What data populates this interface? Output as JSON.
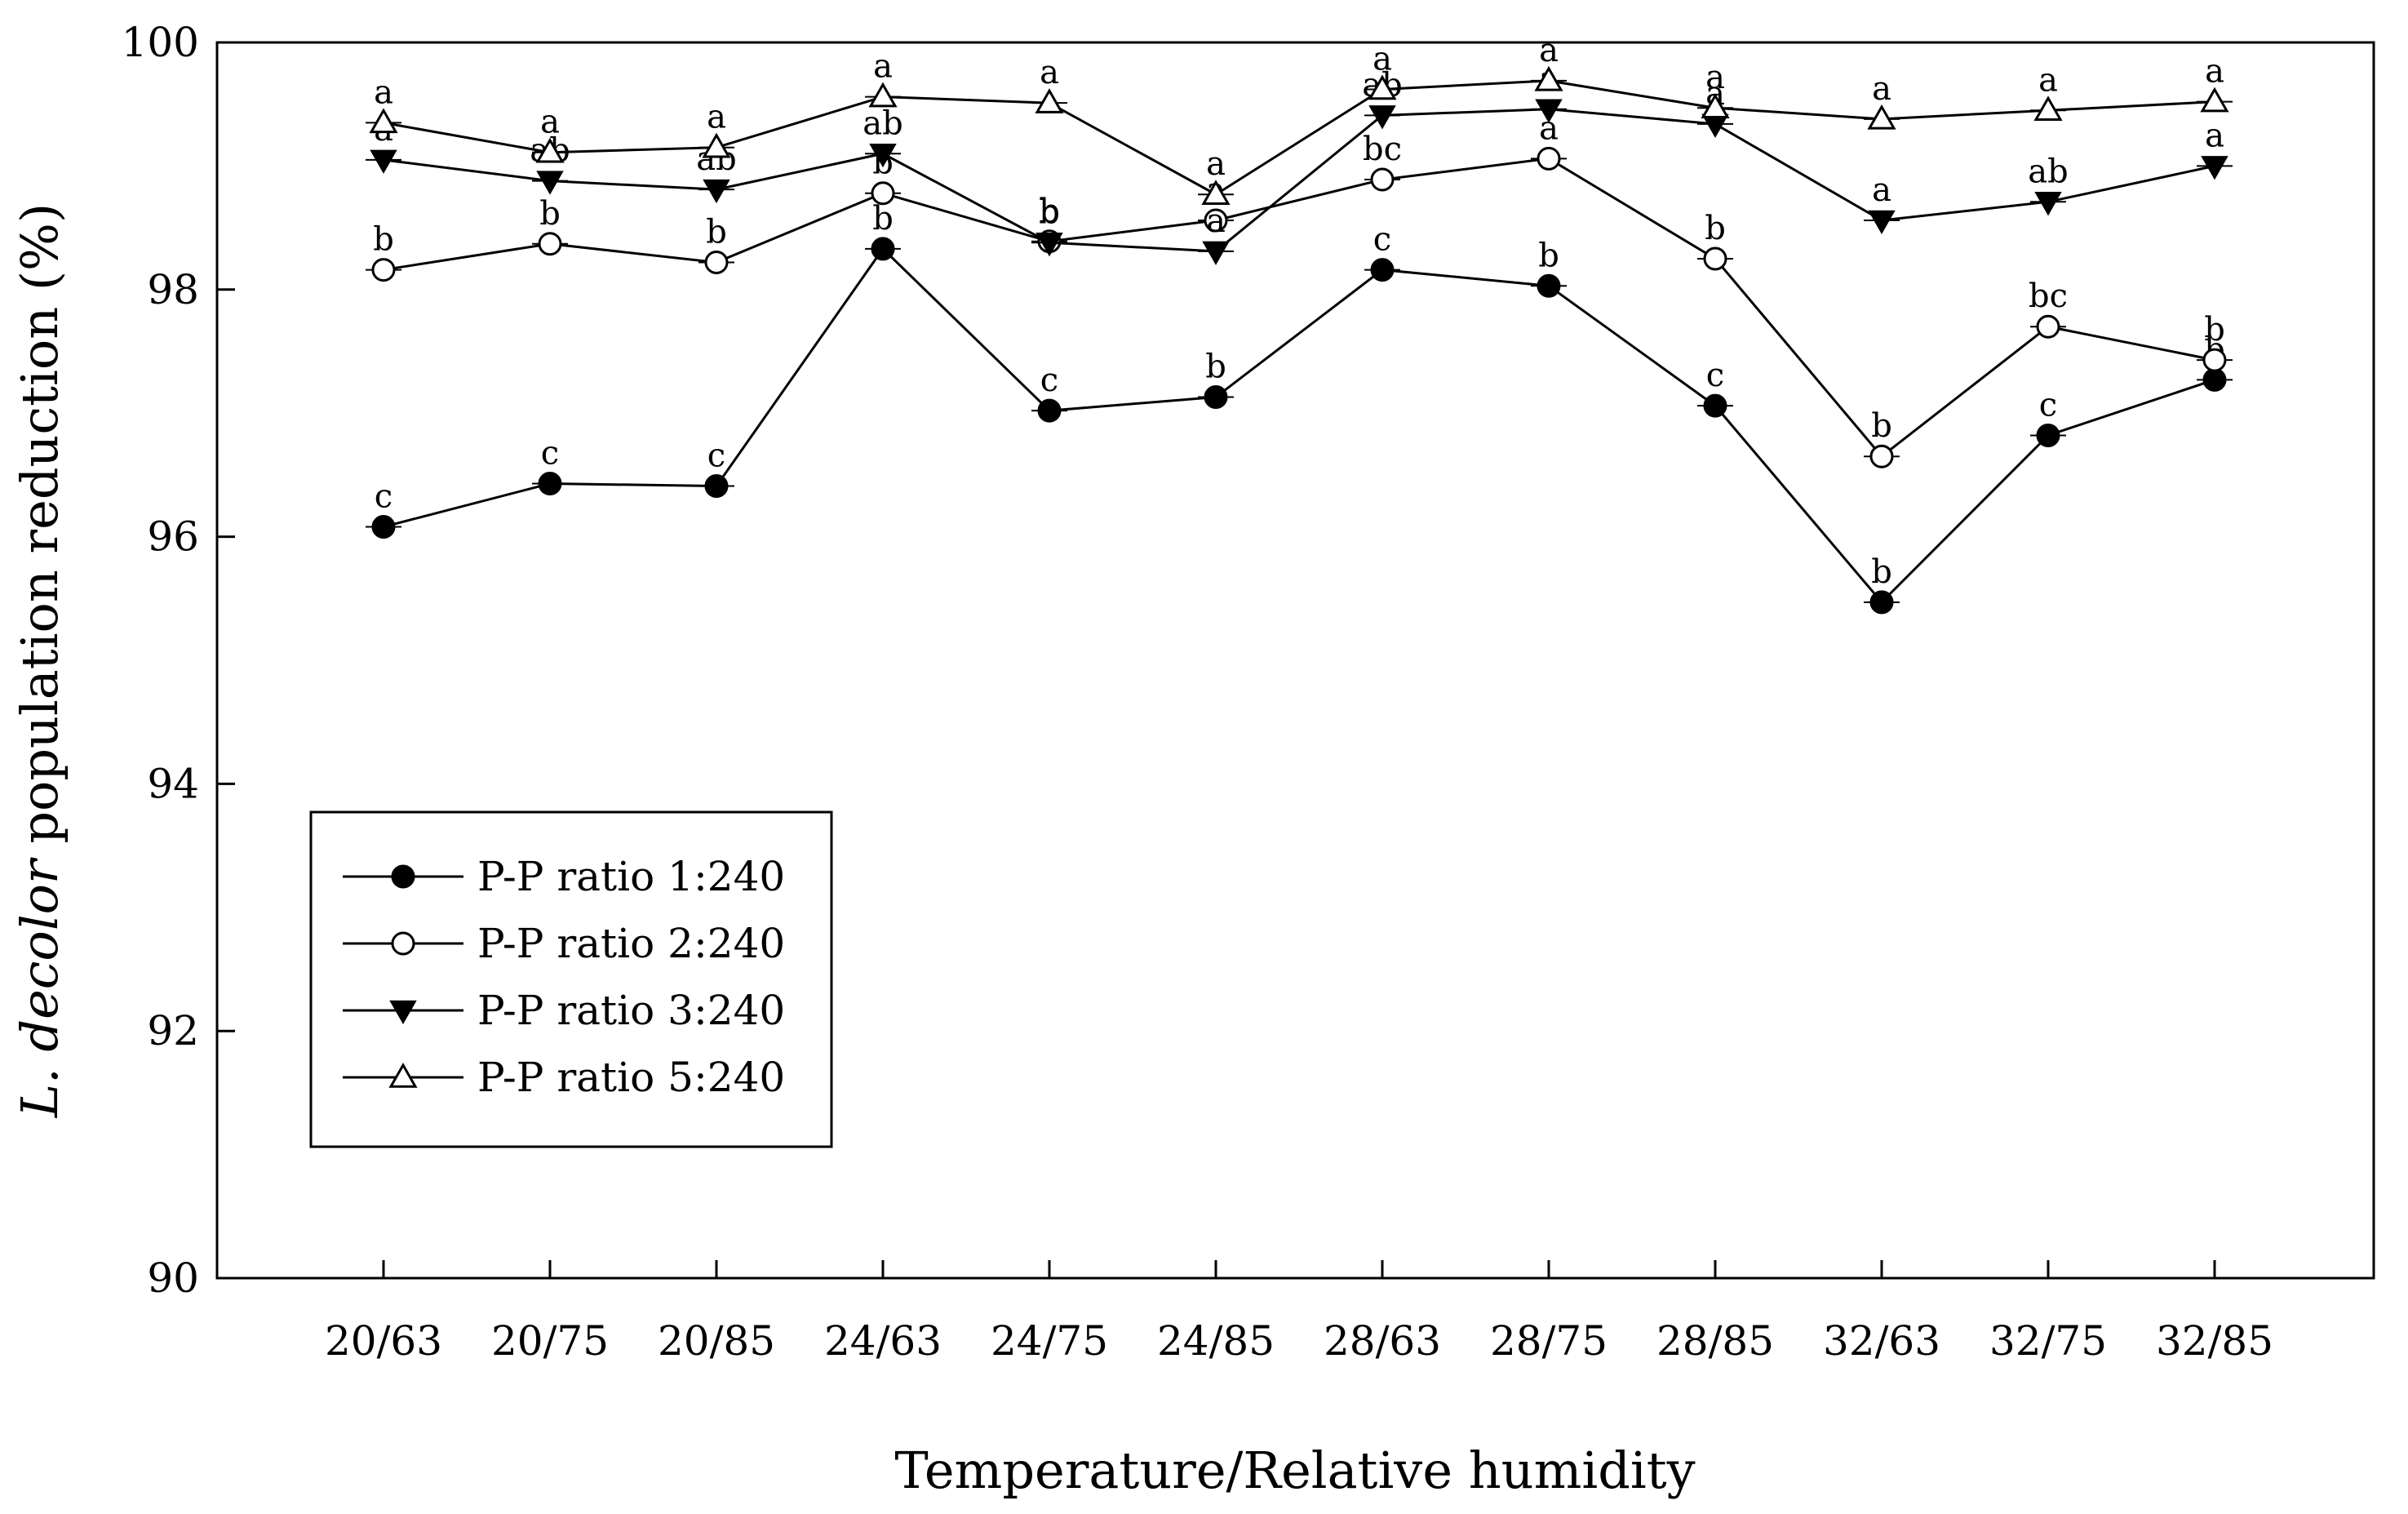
{
  "chart_data": {
    "type": "line",
    "title": "",
    "xlabel": "Temperature/Relative humidity",
    "ylabel": {
      "italic": "L. decolor",
      "rest": " population reduction (%)"
    },
    "ylim": [
      90,
      100
    ],
    "yticks": [
      90,
      92,
      94,
      96,
      98,
      100
    ],
    "ytick_labels": [
      "90",
      "92",
      "94",
      "96",
      "98",
      "100"
    ],
    "categories": [
      "20/63",
      "20/75",
      "20/85",
      "24/63",
      "24/75",
      "24/85",
      "28/63",
      "28/75",
      "28/85",
      "32/63",
      "32/75",
      "32/85"
    ],
    "legend_position": "bottom-left",
    "series": [
      {
        "name": "P-P ratio 1:240",
        "marker": "filled-circle",
        "values": [
          96.08,
          96.43,
          96.41,
          98.33,
          97.02,
          97.13,
          98.16,
          98.03,
          97.06,
          95.47,
          96.82,
          97.27
        ],
        "labels": [
          "c",
          "c",
          "c",
          "b",
          "c",
          "b",
          "c",
          "b",
          "c",
          "b",
          "c",
          "b"
        ]
      },
      {
        "name": "P-P ratio 2:240",
        "marker": "open-circle",
        "values": [
          98.16,
          98.37,
          98.22,
          98.78,
          98.39,
          98.56,
          98.89,
          99.06,
          98.25,
          96.65,
          97.7,
          97.43
        ],
        "labels": [
          "b",
          "b",
          "b",
          "b",
          "b",
          "a",
          "bc",
          "a",
          "b",
          "b",
          "bc",
          "b"
        ]
      },
      {
        "name": "P-P ratio 3:240",
        "marker": "filled-triangle-down",
        "values": [
          99.05,
          98.88,
          98.81,
          99.1,
          98.38,
          98.31,
          99.41,
          99.46,
          99.34,
          98.56,
          98.71,
          99.0
        ],
        "labels": [
          "a",
          "ab",
          "ab",
          "ab",
          "b",
          "a",
          "ab",
          "a",
          "a",
          "a",
          "ab",
          "a"
        ]
      },
      {
        "name": "P-P ratio 5:240",
        "marker": "open-triangle-up",
        "values": [
          99.35,
          99.11,
          99.15,
          99.56,
          99.51,
          98.77,
          99.62,
          99.69,
          99.47,
          99.38,
          99.45,
          99.52
        ],
        "labels": [
          "a",
          "a",
          "a",
          "a",
          "a",
          "a",
          "a",
          "a",
          "a",
          "a",
          "a",
          "a"
        ]
      }
    ]
  }
}
